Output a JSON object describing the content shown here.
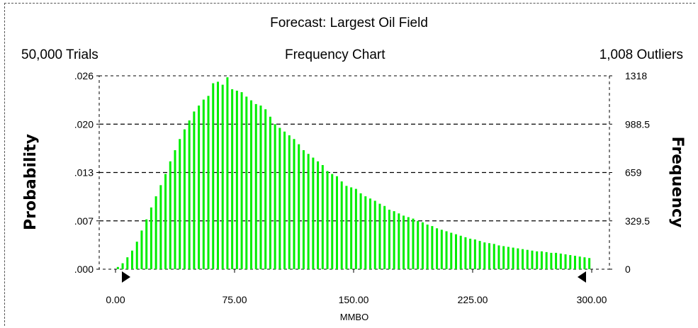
{
  "header": {
    "title": "Forecast: Largest Oil Field",
    "trials": "50,000 Trials",
    "subtitle": "Frequency Chart",
    "outliers": "1,008 Outliers"
  },
  "colors": {
    "bars": "#00ee00",
    "grid": "#000000"
  },
  "chart_data": {
    "type": "bar",
    "title": "Forecast: Largest Oil Field",
    "subtitle": "Frequency Chart",
    "xlabel": "MMBO",
    "ylabel_left": "Probability",
    "ylabel_right": "Frequency",
    "xlim": [
      0,
      300
    ],
    "x_ticks": [
      "0.00",
      "75.00",
      "150.00",
      "225.00",
      "300.00"
    ],
    "x_tick_values": [
      0,
      75,
      150,
      225,
      300
    ],
    "left_ticks": [
      ".000",
      ".007",
      ".013",
      ".020",
      ".026"
    ],
    "right_ticks": [
      "0",
      "329.5",
      "659",
      "988.5",
      "1318"
    ],
    "ylim_probability": [
      0,
      0.026
    ],
    "ylim_frequency": [
      0,
      1318
    ],
    "gridlines": "dashed",
    "bin_width": 3,
    "x": [
      1.5,
      4.5,
      7.5,
      10.5,
      13.5,
      16.5,
      19.5,
      22.5,
      25.5,
      28.5,
      31.5,
      34.5,
      37.5,
      40.5,
      43.5,
      46.5,
      49.5,
      52.5,
      55.5,
      58.5,
      61.5,
      64.5,
      67.5,
      70.5,
      73.5,
      76.5,
      79.5,
      82.5,
      85.5,
      88.5,
      91.5,
      94.5,
      97.5,
      100.5,
      103.5,
      106.5,
      109.5,
      112.5,
      115.5,
      118.5,
      121.5,
      124.5,
      127.5,
      130.5,
      133.5,
      136.5,
      139.5,
      142.5,
      145.5,
      148.5,
      151.5,
      154.5,
      157.5,
      160.5,
      163.5,
      166.5,
      169.5,
      172.5,
      175.5,
      178.5,
      181.5,
      184.5,
      187.5,
      190.5,
      193.5,
      196.5,
      199.5,
      202.5,
      205.5,
      208.5,
      211.5,
      214.5,
      217.5,
      220.5,
      223.5,
      226.5,
      229.5,
      232.5,
      235.5,
      238.5,
      241.5,
      244.5,
      247.5,
      250.5,
      253.5,
      256.5,
      259.5,
      262.5,
      265.5,
      268.5,
      271.5,
      274.5,
      277.5,
      280.5,
      283.5,
      286.5,
      289.5,
      292.5,
      295.5,
      298.5
    ],
    "values": [
      0.0003,
      0.0008,
      0.0016,
      0.0025,
      0.0037,
      0.0052,
      0.0067,
      0.0083,
      0.0098,
      0.0113,
      0.0128,
      0.0145,
      0.016,
      0.0175,
      0.0188,
      0.02,
      0.0212,
      0.022,
      0.0228,
      0.0233,
      0.025,
      0.0252,
      0.0248,
      0.0258,
      0.0242,
      0.024,
      0.0238,
      0.0232,
      0.0227,
      0.0222,
      0.022,
      0.0215,
      0.0205,
      0.0195,
      0.019,
      0.0185,
      0.018,
      0.0175,
      0.0168,
      0.016,
      0.0155,
      0.015,
      0.0145,
      0.014,
      0.0132,
      0.0128,
      0.0125,
      0.0118,
      0.0112,
      0.011,
      0.0108,
      0.0102,
      0.0098,
      0.0095,
      0.0092,
      0.0088,
      0.0085,
      0.008,
      0.0078,
      0.0075,
      0.0072,
      0.007,
      0.0068,
      0.0065,
      0.0063,
      0.006,
      0.0058,
      0.0055,
      0.0053,
      0.0051,
      0.0049,
      0.0047,
      0.0045,
      0.0043,
      0.0041,
      0.004,
      0.0038,
      0.0036,
      0.0035,
      0.0034,
      0.0032,
      0.0031,
      0.003,
      0.0029,
      0.0028,
      0.0027,
      0.0026,
      0.0025,
      0.0024,
      0.0024,
      0.0023,
      0.0022,
      0.0022,
      0.0021,
      0.002,
      0.0019,
      0.0018,
      0.0017,
      0.0016,
      0.0015
    ]
  }
}
